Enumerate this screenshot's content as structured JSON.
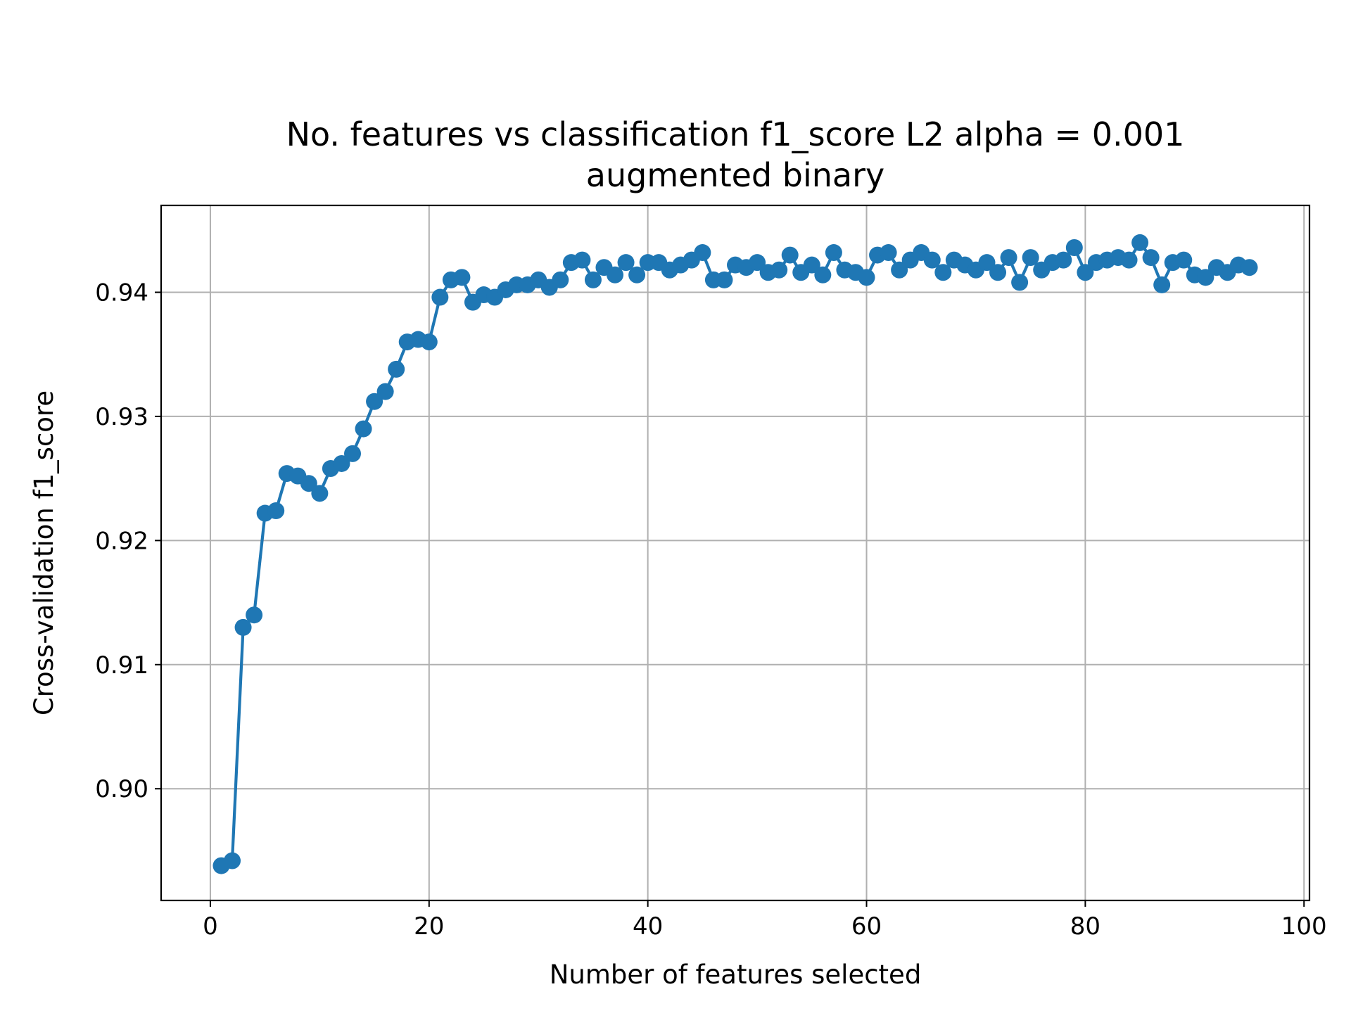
{
  "chart_data": {
    "type": "line",
    "title": "No. features vs classification f1_score L2 alpha = 0.001",
    "subtitle": "augmented binary",
    "xlabel": "Number of features selected",
    "ylabel": "Cross-validation f1_score",
    "xlim": [
      -4.5,
      100.5
    ],
    "ylim": [
      0.891,
      0.947
    ],
    "xticks": [
      0,
      20,
      40,
      60,
      80,
      100
    ],
    "yticks": [
      0.9,
      0.91,
      0.92,
      0.93,
      0.94
    ],
    "xtick_labels": [
      "0",
      "20",
      "40",
      "60",
      "80",
      "100"
    ],
    "ytick_labels": [
      "0.90",
      "0.91",
      "0.92",
      "0.93",
      "0.94"
    ],
    "grid": true,
    "color": "#1f77b4",
    "series": [
      {
        "x": [
          1,
          2,
          3,
          4,
          5,
          6,
          7,
          8,
          9,
          10,
          11,
          12,
          13,
          14,
          15,
          16,
          17,
          18,
          19,
          20,
          21,
          22,
          23,
          24,
          25,
          26,
          27,
          28,
          29,
          30,
          31,
          32,
          33,
          34,
          35,
          36,
          37,
          38,
          39,
          40,
          41,
          42,
          43,
          44,
          45,
          46,
          47,
          48,
          49,
          50,
          51,
          52,
          53,
          54,
          55,
          56,
          57,
          58,
          59,
          60,
          61,
          62,
          63,
          64,
          65,
          66,
          67,
          68,
          69,
          70,
          71,
          72,
          73,
          74,
          75,
          76,
          77,
          78,
          79,
          80,
          81,
          82,
          83,
          84,
          85,
          86,
          87,
          88,
          89,
          90,
          91,
          92,
          93,
          94,
          95
        ],
        "values": [
          0.8938,
          0.8942,
          0.913,
          0.914,
          0.9222,
          0.9224,
          0.9254,
          0.9252,
          0.9246,
          0.9238,
          0.9258,
          0.9262,
          0.927,
          0.929,
          0.9312,
          0.932,
          0.9338,
          0.936,
          0.9362,
          0.936,
          0.9396,
          0.941,
          0.9412,
          0.9392,
          0.9398,
          0.9396,
          0.9402,
          0.9406,
          0.9406,
          0.941,
          0.9404,
          0.941,
          0.9424,
          0.9426,
          0.941,
          0.942,
          0.9414,
          0.9424,
          0.9414,
          0.9424,
          0.9424,
          0.9418,
          0.9422,
          0.9426,
          0.9432,
          0.941,
          0.941,
          0.9422,
          0.942,
          0.9424,
          0.9416,
          0.9418,
          0.943,
          0.9416,
          0.9422,
          0.9414,
          0.9432,
          0.9418,
          0.9416,
          0.9412,
          0.943,
          0.9432,
          0.9418,
          0.9426,
          0.9432,
          0.9426,
          0.9416,
          0.9426,
          0.9422,
          0.9418,
          0.9424,
          0.9416,
          0.9428,
          0.9408,
          0.9428,
          0.9418,
          0.9424,
          0.9426,
          0.9436,
          0.9416,
          0.9424,
          0.9426,
          0.9428,
          0.9426,
          0.944,
          0.9428,
          0.9406,
          0.9424,
          0.9426,
          0.9414,
          0.9412,
          0.942,
          0.9416,
          0.9422,
          0.942
        ]
      }
    ]
  }
}
